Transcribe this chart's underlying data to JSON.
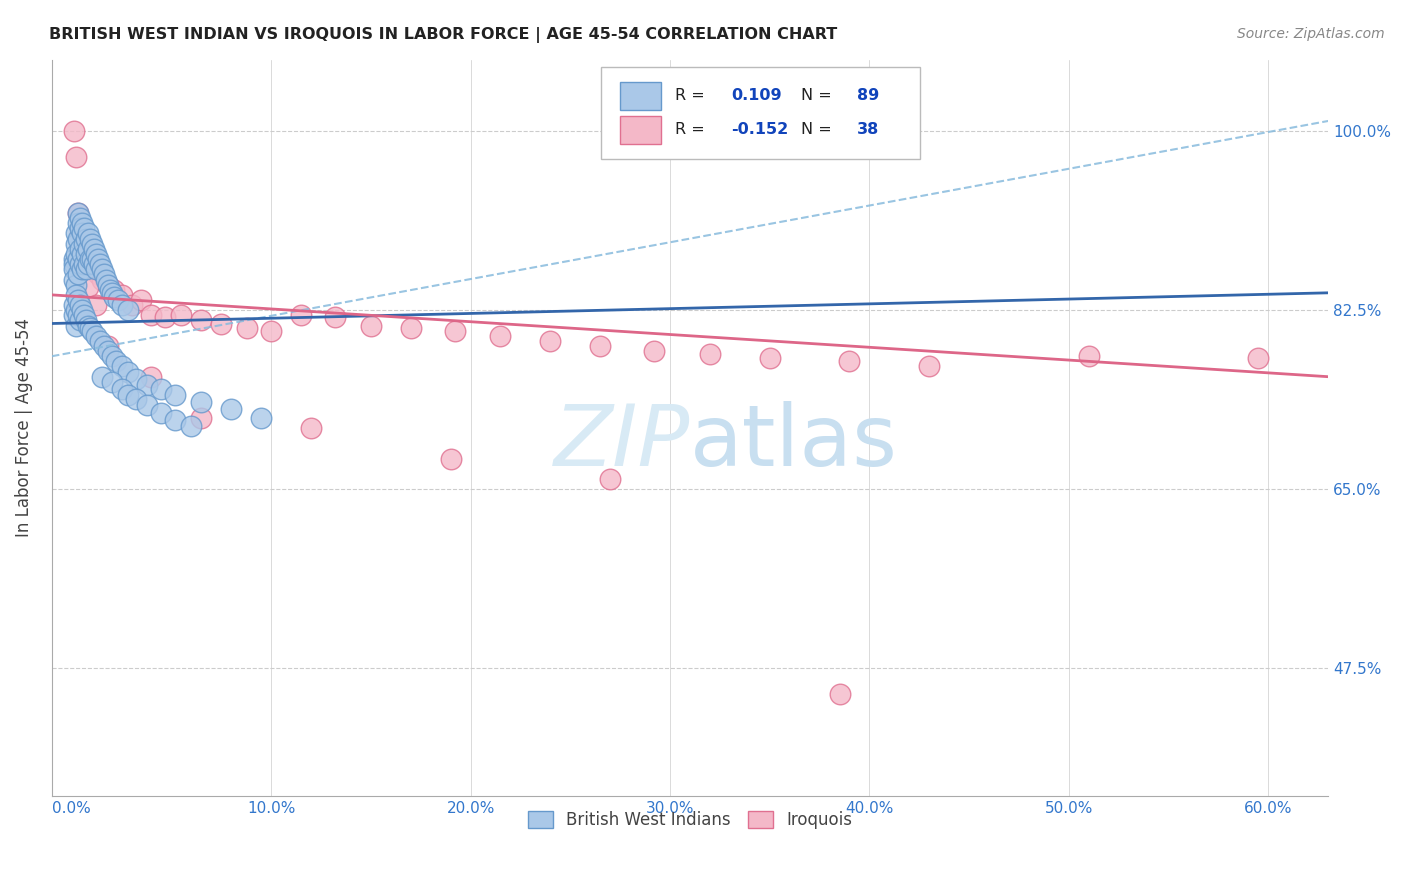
{
  "title": "BRITISH WEST INDIAN VS IROQUOIS IN LABOR FORCE | AGE 45-54 CORRELATION CHART",
  "source": "Source: ZipAtlas.com",
  "xlabel_ticks": [
    "0.0%",
    "10.0%",
    "20.0%",
    "30.0%",
    "40.0%",
    "50.0%",
    "60.0%"
  ],
  "xlabel_vals": [
    0.0,
    0.1,
    0.2,
    0.3,
    0.4,
    0.5,
    0.6
  ],
  "ylabel_ticks": [
    "47.5%",
    "65.0%",
    "82.5%",
    "100.0%"
  ],
  "ylabel_vals": [
    0.475,
    0.65,
    0.825,
    1.0
  ],
  "ylabel_label": "In Labor Force | Age 45-54",
  "ylim": [
    0.35,
    1.07
  ],
  "xlim": [
    -0.01,
    0.63
  ],
  "blue_color": "#aac8e8",
  "blue_edge": "#6699cc",
  "pink_color": "#f4b8c8",
  "pink_edge": "#e07090",
  "blue_line_color": "#3366aa",
  "pink_line_color": "#dd6688",
  "dashed_line_color": "#88bbdd",
  "watermark_color": "#d8eaf5",
  "grid_color": "#cccccc",
  "title_color": "#222222",
  "axis_label_color": "#444444",
  "tick_color": "#3377cc",
  "legend_R_color": "#222222",
  "legend_N_color": "#1144bb",
  "blue_scatter_x": [
    0.001,
    0.001,
    0.001,
    0.001,
    0.002,
    0.002,
    0.002,
    0.002,
    0.003,
    0.003,
    0.003,
    0.003,
    0.003,
    0.004,
    0.004,
    0.004,
    0.004,
    0.005,
    0.005,
    0.005,
    0.005,
    0.006,
    0.006,
    0.006,
    0.007,
    0.007,
    0.007,
    0.008,
    0.008,
    0.008,
    0.009,
    0.009,
    0.01,
    0.01,
    0.011,
    0.011,
    0.012,
    0.012,
    0.013,
    0.014,
    0.015,
    0.016,
    0.017,
    0.018,
    0.019,
    0.02,
    0.021,
    0.023,
    0.025,
    0.028,
    0.001,
    0.001,
    0.002,
    0.002,
    0.002,
    0.003,
    0.003,
    0.004,
    0.004,
    0.005,
    0.006,
    0.007,
    0.008,
    0.009,
    0.01,
    0.012,
    0.014,
    0.016,
    0.018,
    0.02,
    0.022,
    0.025,
    0.028,
    0.032,
    0.038,
    0.045,
    0.052,
    0.065,
    0.08,
    0.095,
    0.015,
    0.02,
    0.025,
    0.028,
    0.032,
    0.038,
    0.045,
    0.052,
    0.06
  ],
  "blue_scatter_y": [
    0.875,
    0.87,
    0.865,
    0.855,
    0.9,
    0.89,
    0.88,
    0.85,
    0.92,
    0.91,
    0.895,
    0.875,
    0.86,
    0.915,
    0.905,
    0.885,
    0.87,
    0.91,
    0.9,
    0.88,
    0.865,
    0.905,
    0.89,
    0.87,
    0.895,
    0.88,
    0.865,
    0.9,
    0.885,
    0.87,
    0.895,
    0.875,
    0.89,
    0.875,
    0.885,
    0.87,
    0.88,
    0.865,
    0.875,
    0.87,
    0.865,
    0.86,
    0.855,
    0.85,
    0.845,
    0.842,
    0.838,
    0.835,
    0.83,
    0.825,
    0.83,
    0.82,
    0.84,
    0.825,
    0.81,
    0.835,
    0.82,
    0.83,
    0.815,
    0.825,
    0.82,
    0.815,
    0.81,
    0.808,
    0.805,
    0.8,
    0.795,
    0.79,
    0.785,
    0.78,
    0.775,
    0.77,
    0.765,
    0.758,
    0.752,
    0.748,
    0.742,
    0.735,
    0.728,
    0.72,
    0.76,
    0.755,
    0.748,
    0.742,
    0.738,
    0.732,
    0.725,
    0.718,
    0.712
  ],
  "pink_scatter_x": [
    0.001,
    0.002,
    0.003,
    0.004,
    0.005,
    0.007,
    0.009,
    0.011,
    0.013,
    0.015,
    0.018,
    0.021,
    0.025,
    0.03,
    0.035,
    0.04,
    0.047,
    0.055,
    0.065,
    0.075,
    0.088,
    0.1,
    0.115,
    0.132,
    0.15,
    0.17,
    0.192,
    0.215,
    0.24,
    0.265,
    0.292,
    0.32,
    0.35,
    0.39,
    0.43,
    0.51,
    0.595,
    0.008,
    0.012
  ],
  "pink_scatter_y": [
    1.0,
    0.975,
    0.92,
    0.9,
    0.88,
    0.885,
    0.87,
    0.865,
    0.86,
    0.855,
    0.85,
    0.845,
    0.84,
    0.83,
    0.835,
    0.82,
    0.818,
    0.82,
    0.815,
    0.812,
    0.808,
    0.805,
    0.82,
    0.818,
    0.81,
    0.808,
    0.805,
    0.8,
    0.795,
    0.79,
    0.785,
    0.782,
    0.778,
    0.775,
    0.77,
    0.78,
    0.778,
    0.848,
    0.83
  ],
  "pink_low_x": [
    0.018,
    0.04,
    0.065,
    0.12,
    0.19,
    0.27,
    0.385
  ],
  "pink_low_y": [
    0.79,
    0.76,
    0.72,
    0.71,
    0.68,
    0.66,
    0.45
  ],
  "pink_very_low_x": [
    0.38
  ],
  "pink_very_low_y": [
    0.45
  ],
  "blue_line_x0": -0.01,
  "blue_line_x1": 0.63,
  "blue_line_y0": 0.812,
  "blue_line_y1": 0.842,
  "pink_line_x0": -0.01,
  "pink_line_x1": 0.63,
  "pink_line_y0": 0.84,
  "pink_line_y1": 0.76,
  "dash_line_x0": -0.01,
  "dash_line_x1": 0.63,
  "dash_line_y0": 0.78,
  "dash_line_y1": 1.01
}
